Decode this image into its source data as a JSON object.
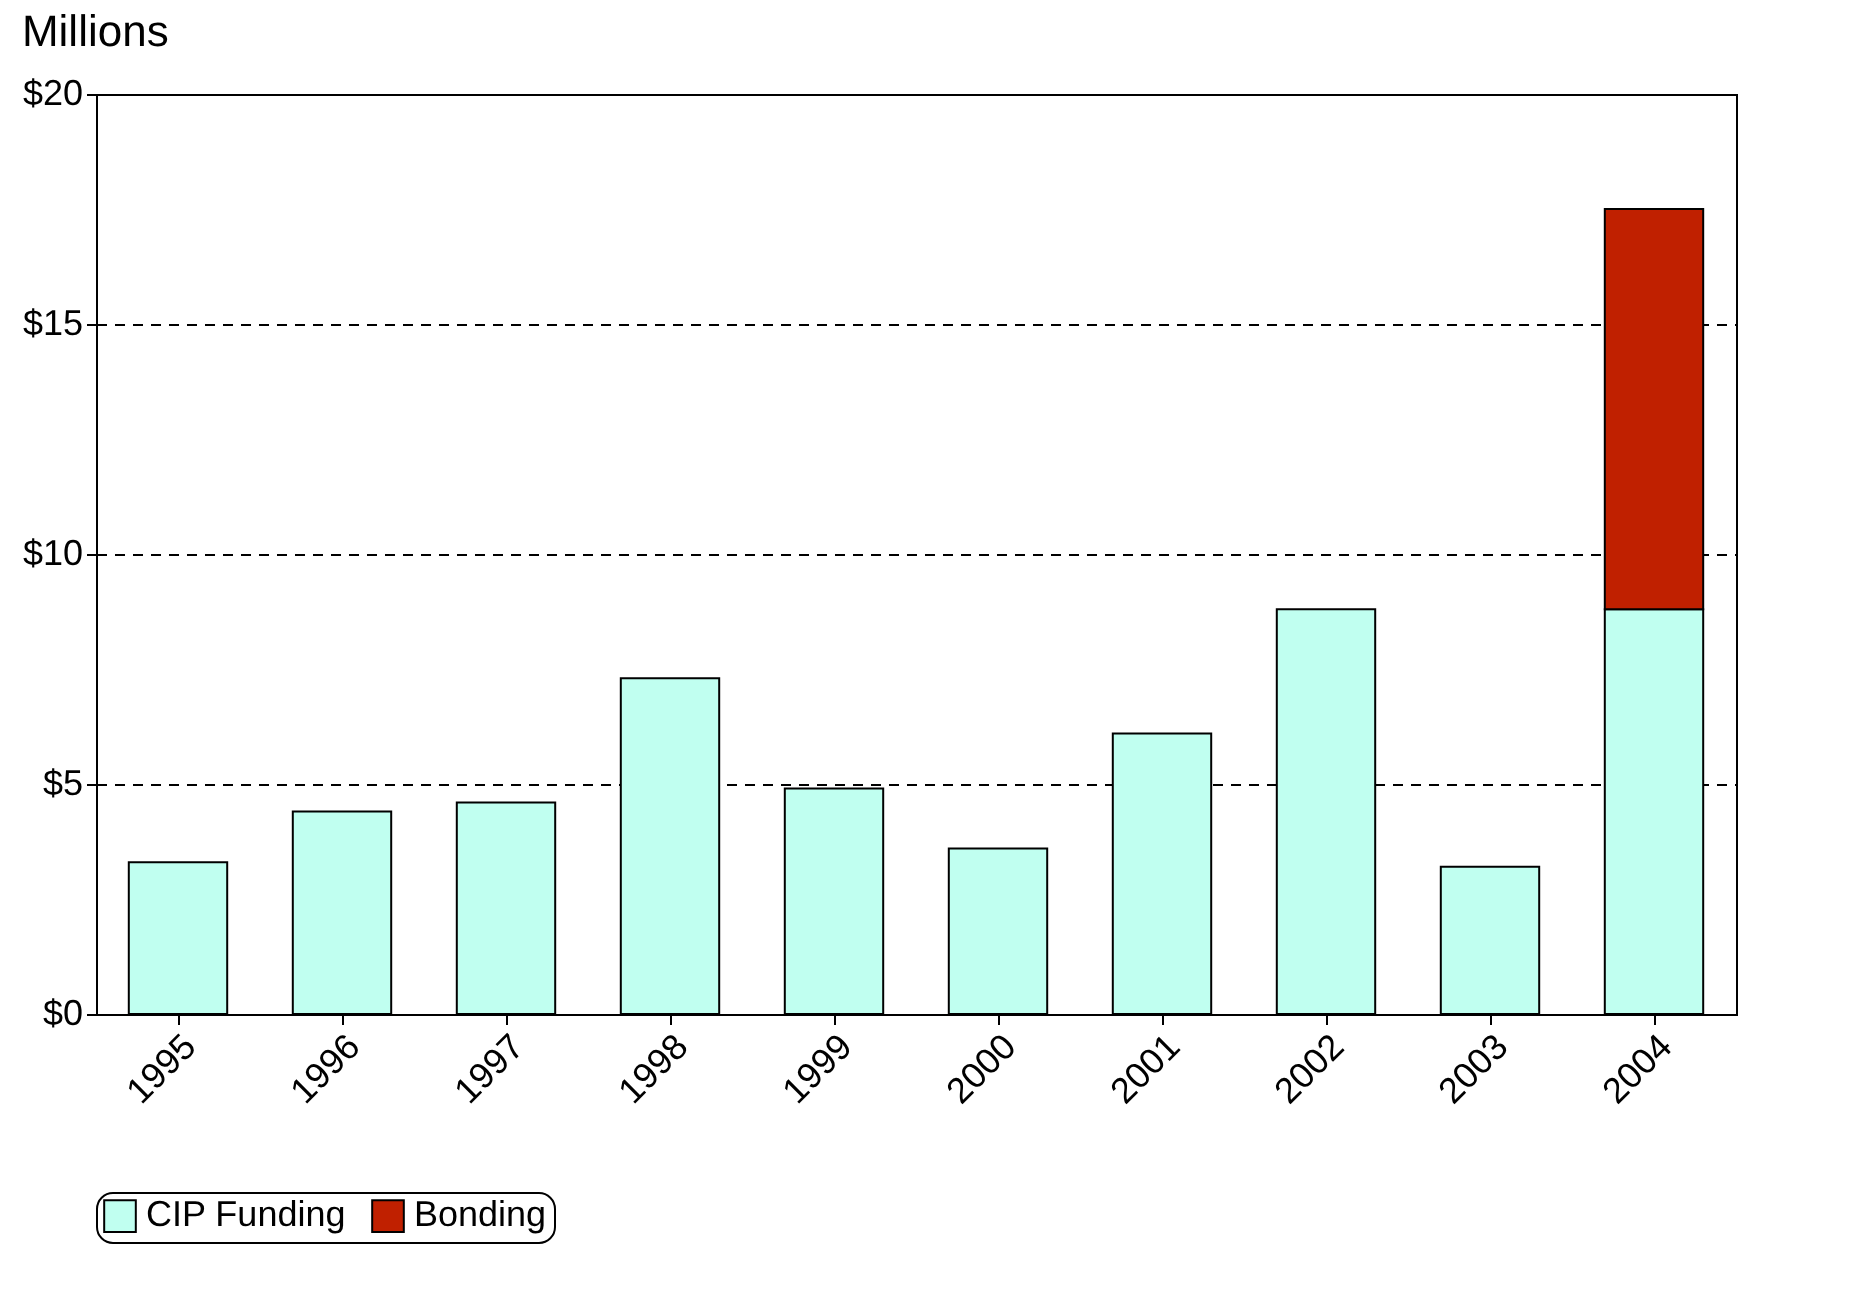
{
  "chart_data": {
    "type": "bar",
    "title": "Millions",
    "categories": [
      "1995",
      "1996",
      "1997",
      "1998",
      "1999",
      "2000",
      "2001",
      "2002",
      "2003",
      "2004"
    ],
    "series": [
      {
        "name": "CIP Funding",
        "color": "#c0fff0",
        "values": [
          3.3,
          4.4,
          4.6,
          7.3,
          4.9,
          3.6,
          6.1,
          8.8,
          3.2,
          8.8
        ]
      },
      {
        "name": "Bonding",
        "color": "#c02000",
        "values": [
          null,
          null,
          null,
          null,
          null,
          null,
          null,
          null,
          null,
          8.7
        ]
      }
    ],
    "stacked": true,
    "ylim": [
      0,
      20
    ],
    "yticks": [
      {
        "value": 0,
        "label": "$0"
      },
      {
        "value": 5,
        "label": "$5"
      },
      {
        "value": 10,
        "label": "$10"
      },
      {
        "value": 15,
        "label": "$15"
      },
      {
        "value": 20,
        "label": "$20"
      }
    ],
    "grid": "y",
    "legend": "bottom"
  }
}
